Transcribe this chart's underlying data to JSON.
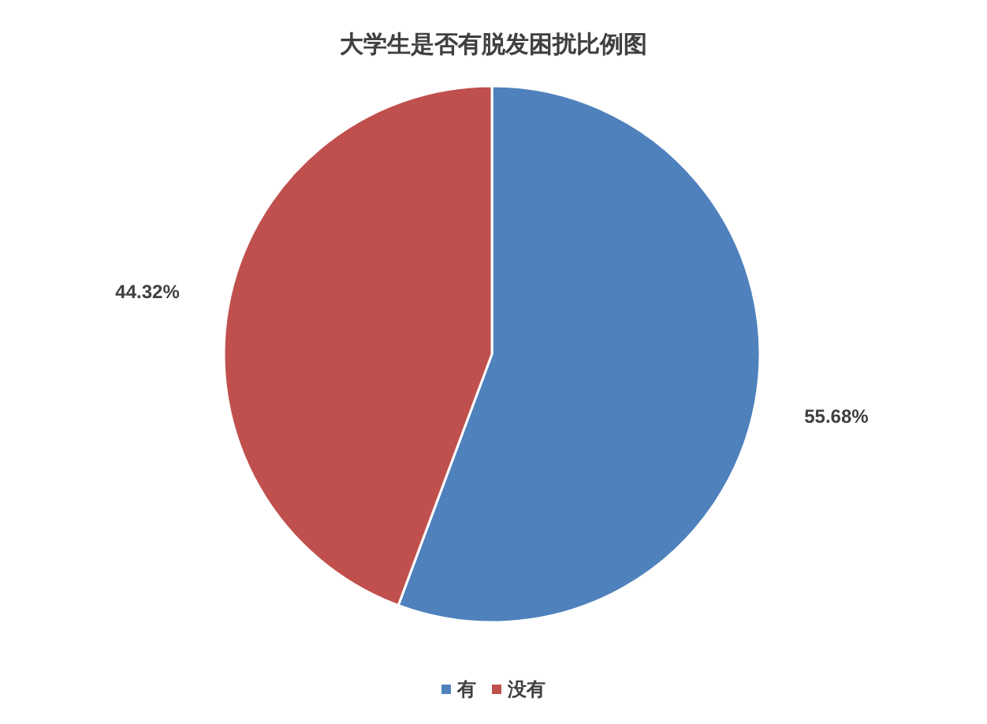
{
  "chart_data": {
    "type": "pie",
    "title": "大学生是否有脱发困扰比例图",
    "categories": [
      "有",
      "没有"
    ],
    "values": [
      55.68,
      44.32
    ],
    "colors": [
      "#4f81bd",
      "#c0504d"
    ],
    "value_labels": [
      "55.68%",
      "44.32%"
    ],
    "legend": "bottom"
  }
}
